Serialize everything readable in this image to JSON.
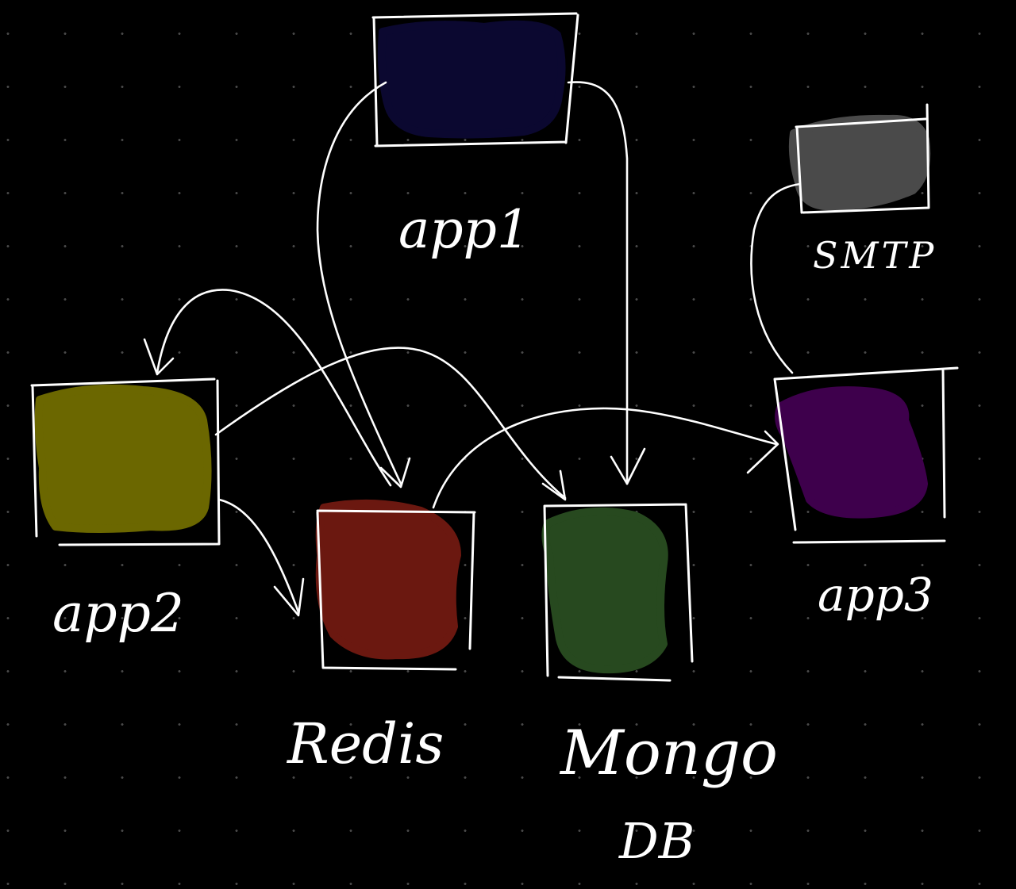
{
  "nodes": {
    "app1": {
      "label": "app1",
      "color": "#0b0830"
    },
    "app2": {
      "label": "app2",
      "color": "#6b6700"
    },
    "app3": {
      "label": "app3",
      "color": "#3e004c"
    },
    "smtp": {
      "label": "SMTP",
      "color": "#4a4a4a"
    },
    "redis": {
      "label": "Redis",
      "color": "#6b1810"
    },
    "mongo": {
      "label": "Mongo",
      "label2": "DB",
      "color": "#27491f"
    }
  },
  "edges": [
    {
      "from": "app1",
      "to": "redis"
    },
    {
      "from": "app1",
      "to": "mongo"
    },
    {
      "from": "app2",
      "to": "redis"
    },
    {
      "from": "app2",
      "to": "mongo"
    },
    {
      "from": "redis",
      "to": "app2"
    },
    {
      "from": "redis",
      "to": "app3"
    },
    {
      "from": "app3",
      "to": "smtp"
    }
  ]
}
